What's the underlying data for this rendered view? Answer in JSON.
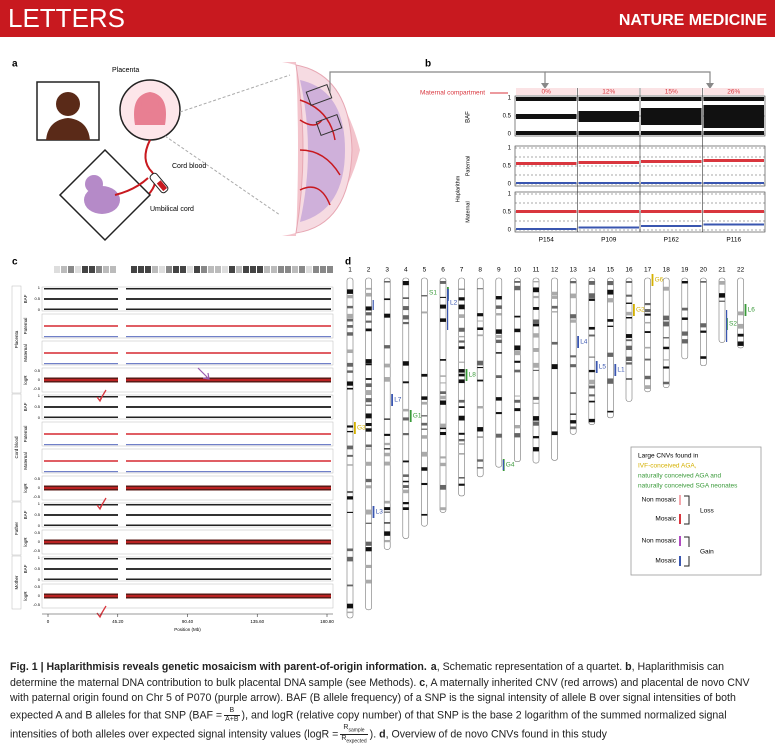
{
  "header": {
    "section": "LETTERS",
    "journal": "NATURE MEDICINE"
  },
  "panel_a": {
    "label": "a",
    "placenta": "Placenta",
    "cord_blood": "Cord blood",
    "umbilical_cord": "Umbilical cord"
  },
  "panel_b": {
    "label": "b",
    "maternal_compartment": "Maternal compartment",
    "percentages": [
      "0%",
      "12%",
      "15%",
      "26%"
    ],
    "samples": [
      "P154",
      "P109",
      "P162",
      "P116"
    ],
    "baf_label": "BAF",
    "haplarithm_label": "Haplarithm",
    "paternal_label": "Paternal",
    "maternal_label": "Maternal",
    "ticks": [
      1,
      0.5,
      0
    ]
  },
  "panel_c": {
    "label": "c",
    "groups": [
      {
        "name": "Placenta",
        "tracks": [
          "BAF",
          "Paternal",
          "Maternal",
          "logR"
        ]
      },
      {
        "name": "Cord blood",
        "tracks": [
          "BAF",
          "Paternal",
          "Maternal",
          "logR"
        ]
      },
      {
        "name": "Father",
        "tracks": [
          "BAF",
          "logR"
        ]
      },
      {
        "name": "Mother",
        "tracks": [
          "BAF",
          "logR"
        ]
      }
    ],
    "baf_ticks": [
      1,
      0.5,
      0
    ],
    "logr_ticks": [
      0.5,
      0,
      -0.5
    ],
    "x_label": "Position (Mb)",
    "x_ticks": [
      "0",
      "45.20",
      "90.40",
      "135.60",
      "180.80"
    ]
  },
  "panel_d": {
    "label": "d",
    "chromosomes": [
      "1",
      "2",
      "3",
      "4",
      "5",
      "6",
      "7",
      "8",
      "9",
      "10",
      "11",
      "12",
      "13",
      "14",
      "15",
      "16",
      "17",
      "18",
      "19",
      "20",
      "21",
      "22"
    ],
    "cnvs": [
      {
        "label": "G3",
        "color": "#d4b000"
      },
      {
        "label": "L3",
        "color": "#3a56b0"
      },
      {
        "label": "L7",
        "color": "#3a56b0"
      },
      {
        "label": "G1",
        "color": "#3a9a3a"
      },
      {
        "label": "S1",
        "color": "#3a9a3a"
      },
      {
        "label": "L2",
        "color": "#3a56b0"
      },
      {
        "label": "L8",
        "color": "#3a9a3a"
      },
      {
        "label": "G4",
        "color": "#3a9a3a"
      },
      {
        "label": "L4",
        "color": "#3a56b0"
      },
      {
        "label": "L5",
        "color": "#3a56b0"
      },
      {
        "label": "L1",
        "color": "#3a56b0"
      },
      {
        "label": "G2",
        "color": "#d4b000"
      },
      {
        "label": "G6",
        "color": "#d4b000"
      },
      {
        "label": "S2",
        "color": "#3a9a3a"
      },
      {
        "label": "L6",
        "color": "#3a9a3a"
      }
    ],
    "legend": {
      "title": "Large CNVs found in",
      "line1": "IVF-conceived AGA,",
      "line2": "naturally conceived AGA and",
      "line3": "naturally conceived SGA neonates",
      "non_mosaic_loss": "Non mosaic",
      "loss": "Loss",
      "mosaic_loss": "Mosaic",
      "non_mosaic_gain": "Non mosaic",
      "gain": "Gain",
      "mosaic_gain": "Mosaic"
    }
  },
  "caption": [
    {
      "text": "Fig. 1 | Haplarithmisis reveals genetic mosaicism with parent-of-origin information.",
      "bold": true
    },
    {
      "text": "a",
      "bold": true
    },
    {
      "text": ", Schematic representation of a quartet. "
    },
    {
      "text": "b",
      "bold": true
    },
    {
      "text": ", Haplarithmisis can determine the maternal DNA contribution to bulk placental DNA sample (see Methods). "
    },
    {
      "text": "c",
      "bold": true
    },
    {
      "text": ", A maternally inherited CNV (red arrows) and placental de novo CNV with paternal origin found on Chr 5 of P070 (purple arrow). BAF (B allele frequency) of a SNP is the signal intensity of allele B over signal intensities of both expected A and B alleles for that SNP ("
    },
    {
      "lhs": "BAF =",
      "num": "B",
      "den": "A+B"
    },
    {
      "text": "), and logR (relative copy number) of that SNP is the base 2 logarithm of the summed normalized signal intensities of both alleles over expected signal intensity values ("
    },
    {
      "lhs": "logR =",
      "num": "R",
      "num_sub": "sample",
      "den": "R",
      "den_sub": "expected"
    },
    {
      "text": "). "
    },
    {
      "text": "d",
      "bold": true
    },
    {
      "text": ", Overview of de novo CNVs found in this study"
    }
  ]
}
